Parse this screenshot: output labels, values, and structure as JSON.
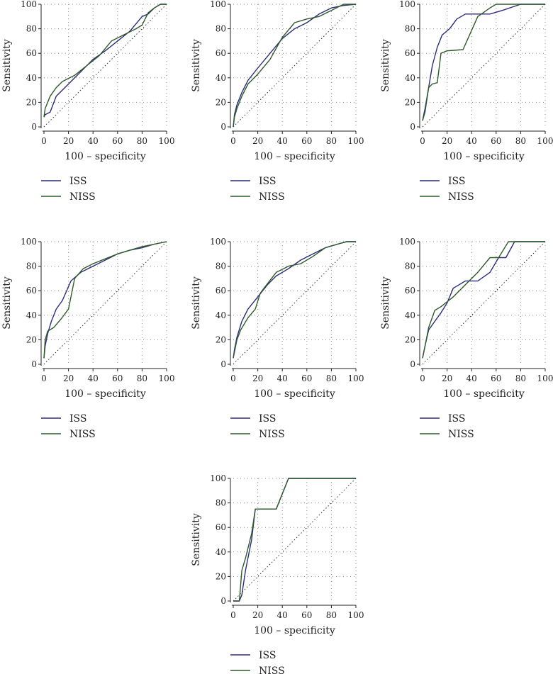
{
  "figure": {
    "ylabel": "Sensitivity",
    "xlabel": "100 – specificity",
    "legend": [
      "ISS",
      "NISS"
    ],
    "colors": {
      "ISS": "#2b2d7a",
      "NISS": "#2f5a2a",
      "reference": "#333333",
      "grid": "#888888"
    }
  },
  "chart_data": [
    {
      "type": "line",
      "xlabel": "100 – specificity",
      "ylabel": "Sensitivity",
      "xlim": [
        0,
        100
      ],
      "ylim": [
        0,
        100
      ],
      "xticks": [
        0,
        20,
        40,
        60,
        80,
        100
      ],
      "yticks": [
        0,
        20,
        40,
        60,
        80,
        100
      ],
      "grid": true,
      "legend": "below",
      "series": [
        {
          "name": "ISS",
          "x": [
            0,
            1,
            5,
            10,
            15,
            20,
            30,
            40,
            50,
            60,
            70,
            80,
            85,
            90,
            95,
            100
          ],
          "y": [
            8,
            10,
            12,
            25,
            30,
            35,
            45,
            55,
            62,
            70,
            78,
            90,
            92,
            97,
            100,
            100
          ]
        },
        {
          "name": "NISS",
          "x": [
            0,
            1,
            5,
            10,
            15,
            25,
            35,
            45,
            55,
            65,
            75,
            80,
            85,
            90,
            95,
            100
          ],
          "y": [
            8,
            15,
            25,
            32,
            37,
            42,
            50,
            58,
            70,
            75,
            80,
            83,
            93,
            97,
            100,
            100
          ]
        }
      ]
    },
    {
      "type": "line",
      "xlabel": "100 – specificity",
      "ylabel": "Sensitivity",
      "xlim": [
        0,
        100
      ],
      "ylim": [
        0,
        100
      ],
      "xticks": [
        0,
        20,
        40,
        60,
        80,
        100
      ],
      "yticks": [
        0,
        20,
        40,
        60,
        80,
        100
      ],
      "grid": true,
      "legend": "below",
      "series": [
        {
          "name": "ISS",
          "x": [
            0,
            1,
            3,
            7,
            12,
            20,
            30,
            40,
            50,
            60,
            70,
            80,
            90,
            100
          ],
          "y": [
            0,
            10,
            18,
            28,
            38,
            48,
            60,
            72,
            80,
            85,
            92,
            97,
            99,
            100
          ]
        },
        {
          "name": "NISS",
          "x": [
            0,
            1,
            3,
            7,
            12,
            20,
            30,
            40,
            50,
            60,
            70,
            80,
            90,
            100
          ],
          "y": [
            0,
            8,
            15,
            25,
            35,
            43,
            55,
            73,
            85,
            88,
            90,
            95,
            100,
            100
          ]
        }
      ]
    },
    {
      "type": "line",
      "xlabel": "100 – specificity",
      "ylabel": "Sensitivity",
      "xlim": [
        0,
        100
      ],
      "ylim": [
        0,
        100
      ],
      "xticks": [
        0,
        20,
        40,
        60,
        80,
        100
      ],
      "yticks": [
        0,
        20,
        40,
        60,
        80,
        100
      ],
      "grid": true,
      "legend": "below",
      "series": [
        {
          "name": "ISS",
          "x": [
            0,
            2,
            5,
            8,
            12,
            16,
            22,
            28,
            35,
            45,
            55,
            65,
            80,
            100
          ],
          "y": [
            5,
            15,
            32,
            50,
            65,
            75,
            80,
            88,
            92,
            92,
            92,
            95,
            100,
            100
          ]
        },
        {
          "name": "NISS",
          "x": [
            0,
            2,
            5,
            8,
            12,
            15,
            20,
            33,
            45,
            55,
            60,
            80,
            100
          ],
          "y": [
            5,
            12,
            32,
            35,
            36,
            60,
            62,
            63,
            90,
            97,
            100,
            100,
            100
          ]
        }
      ]
    },
    {
      "type": "line",
      "xlabel": "100 – specificity",
      "ylabel": "Sensitivity",
      "xlim": [
        0,
        100
      ],
      "ylim": [
        0,
        100
      ],
      "xticks": [
        0,
        20,
        40,
        60,
        80,
        100
      ],
      "yticks": [
        0,
        20,
        40,
        60,
        80,
        100
      ],
      "grid": true,
      "legend": "below",
      "series": [
        {
          "name": "ISS",
          "x": [
            0,
            1,
            3,
            6,
            10,
            15,
            22,
            30,
            40,
            50,
            60,
            70,
            80,
            90,
            100
          ],
          "y": [
            5,
            15,
            25,
            35,
            45,
            52,
            68,
            75,
            80,
            85,
            90,
            93,
            95,
            98,
            100
          ]
        },
        {
          "name": "NISS",
          "x": [
            0,
            1,
            3,
            8,
            14,
            20,
            25,
            32,
            40,
            50,
            60,
            70,
            80,
            90,
            100
          ],
          "y": [
            5,
            20,
            27,
            30,
            37,
            45,
            70,
            78,
            82,
            86,
            90,
            93,
            96,
            98,
            100
          ]
        }
      ]
    },
    {
      "type": "line",
      "xlabel": "100 – specificity",
      "ylabel": "Sensitivity",
      "xlim": [
        0,
        100
      ],
      "ylim": [
        0,
        100
      ],
      "xticks": [
        0,
        20,
        40,
        60,
        80,
        100
      ],
      "yticks": [
        0,
        20,
        40,
        60,
        80,
        100
      ],
      "grid": true,
      "legend": "below",
      "series": [
        {
          "name": "ISS",
          "x": [
            0,
            1,
            3,
            7,
            12,
            20,
            28,
            35,
            45,
            55,
            65,
            75,
            85,
            92,
            100
          ],
          "y": [
            5,
            12,
            22,
            35,
            45,
            55,
            65,
            72,
            78,
            85,
            90,
            95,
            98,
            100,
            100
          ]
        },
        {
          "name": "NISS",
          "x": [
            0,
            1,
            3,
            6,
            12,
            18,
            22,
            25,
            35,
            45,
            55,
            65,
            75,
            85,
            93,
            100
          ],
          "y": [
            5,
            10,
            20,
            28,
            38,
            45,
            58,
            62,
            75,
            80,
            82,
            88,
            95,
            98,
            100,
            100
          ]
        }
      ]
    },
    {
      "type": "line",
      "xlabel": "100 – specificity",
      "ylabel": "Sensitivity",
      "xlim": [
        0,
        100
      ],
      "ylim": [
        0,
        100
      ],
      "xticks": [
        0,
        20,
        40,
        60,
        80,
        100
      ],
      "yticks": [
        0,
        20,
        40,
        60,
        80,
        100
      ],
      "grid": true,
      "legend": "below",
      "series": [
        {
          "name": "ISS",
          "x": [
            0,
            2,
            5,
            10,
            15,
            20,
            25,
            35,
            45,
            55,
            62,
            68,
            75,
            80,
            90,
            100
          ],
          "y": [
            5,
            15,
            28,
            35,
            42,
            50,
            62,
            68,
            68,
            75,
            87,
            87,
            100,
            100,
            100,
            100
          ]
        },
        {
          "name": "NISS",
          "x": [
            0,
            2,
            5,
            10,
            15,
            25,
            35,
            45,
            55,
            62,
            70,
            80,
            90,
            100
          ],
          "y": [
            5,
            15,
            30,
            44,
            47,
            55,
            65,
            75,
            87,
            87,
            100,
            100,
            100,
            100
          ]
        }
      ]
    },
    {
      "type": "line",
      "xlabel": "100 – specificity",
      "ylabel": "Sensitivity",
      "xlim": [
        0,
        100
      ],
      "ylim": [
        0,
        100
      ],
      "xticks": [
        0,
        20,
        40,
        60,
        80,
        100
      ],
      "yticks": [
        0,
        20,
        40,
        60,
        80,
        100
      ],
      "grid": true,
      "legend": "below",
      "series": [
        {
          "name": "ISS",
          "x": [
            0,
            5,
            7,
            10,
            15,
            18,
            35,
            45,
            100
          ],
          "y": [
            0,
            0,
            5,
            25,
            50,
            75,
            75,
            100,
            100
          ]
        },
        {
          "name": "NISS",
          "x": [
            0,
            5,
            7,
            10,
            15,
            18,
            35,
            45,
            100
          ],
          "y": [
            0,
            0,
            25,
            35,
            55,
            75,
            75,
            100,
            100
          ]
        }
      ]
    }
  ]
}
